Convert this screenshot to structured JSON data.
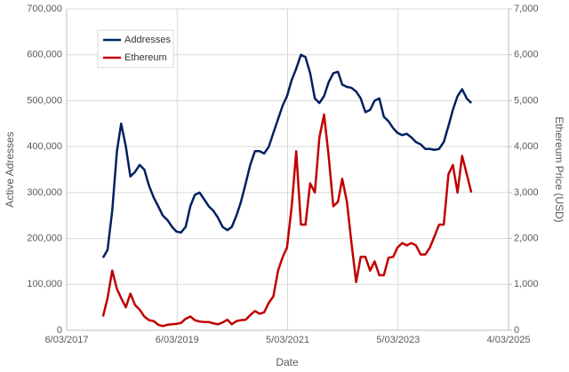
{
  "chart_data": {
    "type": "line",
    "x_label": "Date",
    "y_label": "Active Adresses",
    "y2_label": "Ethereum Price (USD)",
    "grid": true,
    "legend": "upper left",
    "xlim": [
      "2017-03-06",
      "2025-03-04"
    ],
    "xticks": [
      {
        "value": "2017-03-06",
        "label": "6/03/2017"
      },
      {
        "value": "2019-03-06",
        "label": "6/03/2019"
      },
      {
        "value": "2021-03-05",
        "label": "5/03/2021"
      },
      {
        "value": "2023-03-05",
        "label": "5/03/2023"
      },
      {
        "value": "2025-03-04",
        "label": "4/03/2025"
      }
    ],
    "ylim": [
      0,
      700000
    ],
    "yticks": [
      0,
      {
        "value": 100000,
        "label": "100,000"
      },
      {
        "value": 200000,
        "label": "200,000"
      },
      {
        "value": 300000,
        "label": "300,000"
      },
      {
        "value": 400000,
        "label": "400,000"
      },
      {
        "value": 500000,
        "label": "500,000"
      },
      {
        "value": 600000,
        "label": "600,000"
      },
      {
        "value": 700000,
        "label": "700,000"
      }
    ],
    "y2lim": [
      0,
      7000
    ],
    "y2ticks": [
      0,
      {
        "value": 1000,
        "label": "1,000"
      },
      {
        "value": 2000,
        "label": "2,000"
      },
      {
        "value": 3000,
        "label": "3,000"
      },
      {
        "value": 4000,
        "label": "4,000"
      },
      {
        "value": 5000,
        "label": "5,000"
      },
      {
        "value": 6000,
        "label": "6,000"
      },
      {
        "value": 7000,
        "label": "7,000"
      }
    ],
    "x": [
      "2017-11-01",
      "2017-12-01",
      "2018-01-01",
      "2018-02-01",
      "2018-03-01",
      "2018-04-01",
      "2018-05-01",
      "2018-06-01",
      "2018-07-01",
      "2018-08-01",
      "2018-09-01",
      "2018-10-01",
      "2018-11-01",
      "2018-12-01",
      "2019-01-01",
      "2019-02-01",
      "2019-03-01",
      "2019-04-01",
      "2019-05-01",
      "2019-06-01",
      "2019-07-01",
      "2019-08-01",
      "2019-09-01",
      "2019-10-01",
      "2019-11-01",
      "2019-12-01",
      "2020-01-01",
      "2020-02-01",
      "2020-03-01",
      "2020-04-01",
      "2020-05-01",
      "2020-06-01",
      "2020-07-01",
      "2020-08-01",
      "2020-09-01",
      "2020-10-01",
      "2020-11-01",
      "2020-12-01",
      "2021-01-01",
      "2021-02-01",
      "2021-03-01",
      "2021-04-01",
      "2021-05-01",
      "2021-06-01",
      "2021-07-01",
      "2021-08-01",
      "2021-09-01",
      "2021-10-01",
      "2021-11-01",
      "2021-12-01",
      "2022-01-01",
      "2022-02-01",
      "2022-03-01",
      "2022-04-01",
      "2022-05-01",
      "2022-06-01",
      "2022-07-01",
      "2022-08-01",
      "2022-09-01",
      "2022-10-01",
      "2022-11-01",
      "2022-12-01",
      "2023-01-01",
      "2023-02-01",
      "2023-03-01",
      "2023-04-01",
      "2023-05-01",
      "2023-06-01",
      "2023-07-01",
      "2023-08-01",
      "2023-09-01",
      "2023-10-01",
      "2023-11-01",
      "2023-12-01",
      "2024-01-01",
      "2024-02-01",
      "2024-03-01",
      "2024-04-01",
      "2024-05-01",
      "2024-06-01",
      "2024-07-01"
    ],
    "series": [
      {
        "name": "Addresses",
        "color": "#002060",
        "values": [
          158000,
          175000,
          260000,
          390000,
          450000,
          400000,
          335000,
          345000,
          360000,
          350000,
          315000,
          290000,
          270000,
          250000,
          240000,
          225000,
          215000,
          213000,
          225000,
          270000,
          295000,
          300000,
          285000,
          270000,
          260000,
          245000,
          225000,
          218000,
          225000,
          250000,
          280000,
          320000,
          360000,
          390000,
          390000,
          385000,
          400000,
          430000,
          460000,
          490000,
          510000,
          545000,
          570000,
          600000,
          595000,
          560000,
          505000,
          495000,
          510000,
          540000,
          560000,
          563000,
          535000,
          530000,
          528000,
          520000,
          505000,
          475000,
          480000,
          500000,
          505000,
          465000,
          455000,
          440000,
          430000,
          425000,
          428000,
          420000,
          410000,
          405000,
          395000,
          395000,
          393000,
          395000,
          410000,
          445000,
          480000,
          510000,
          525000,
          505000,
          495000
        ]
      },
      {
        "name": "Ethereum",
        "color": "#c00000",
        "axis": "y2",
        "values": [
          300,
          700,
          1300,
          900,
          700,
          500,
          800,
          550,
          450,
          300,
          220,
          200,
          120,
          90,
          120,
          130,
          140,
          160,
          250,
          300,
          220,
          190,
          180,
          180,
          150,
          130,
          170,
          230,
          130,
          200,
          220,
          230,
          330,
          420,
          360,
          390,
          600,
          740,
          1300,
          1600,
          1800,
          2700,
          3900,
          2300,
          2300,
          3200,
          3000,
          4200,
          4700,
          3800,
          2700,
          2800,
          3300,
          2800,
          1900,
          1050,
          1600,
          1600,
          1300,
          1500,
          1200,
          1200,
          1580,
          1600,
          1800,
          1900,
          1850,
          1900,
          1850,
          1650,
          1650,
          1800,
          2050,
          2300,
          2300,
          3400,
          3600,
          3000,
          3800,
          3400,
          3000
        ]
      }
    ]
  }
}
